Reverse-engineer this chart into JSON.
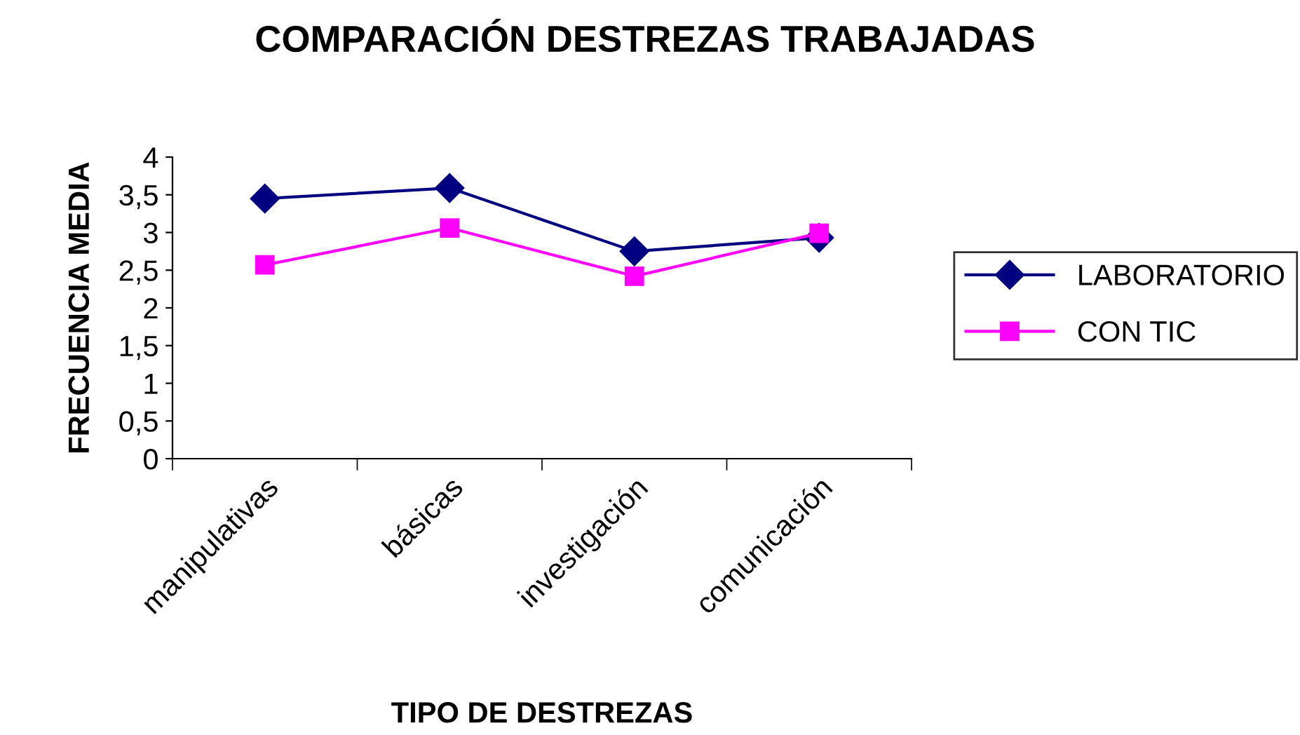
{
  "chart_data": {
    "type": "line",
    "title": "COMPARACIÓN DESTREZAS TRABAJADAS",
    "xlabel": "TIPO DE DESTREZAS",
    "ylabel": "FRECUENCIA MEDIA",
    "categories": [
      "manipulativas",
      "básicas",
      "investigación",
      "comunicación"
    ],
    "series": [
      {
        "name": "LABORATORIO",
        "color": "#000080",
        "marker": "diamond",
        "values": [
          3.45,
          3.59,
          2.75,
          2.93
        ]
      },
      {
        "name": "CON TIC",
        "color": "#ff00ff",
        "marker": "square",
        "values": [
          2.57,
          3.06,
          2.42,
          2.99
        ]
      }
    ],
    "ylim": [
      0,
      4
    ],
    "yticks": [
      0,
      {
        "value": 0.5,
        "label": "0,5"
      },
      1,
      {
        "value": 1.5,
        "label": "1,5"
      },
      2,
      {
        "value": 2.5,
        "label": "2,5"
      },
      3,
      {
        "value": 3.5,
        "label": "3,5"
      },
      4
    ],
    "grid": false,
    "legend": "right",
    "line_style": "solid"
  }
}
